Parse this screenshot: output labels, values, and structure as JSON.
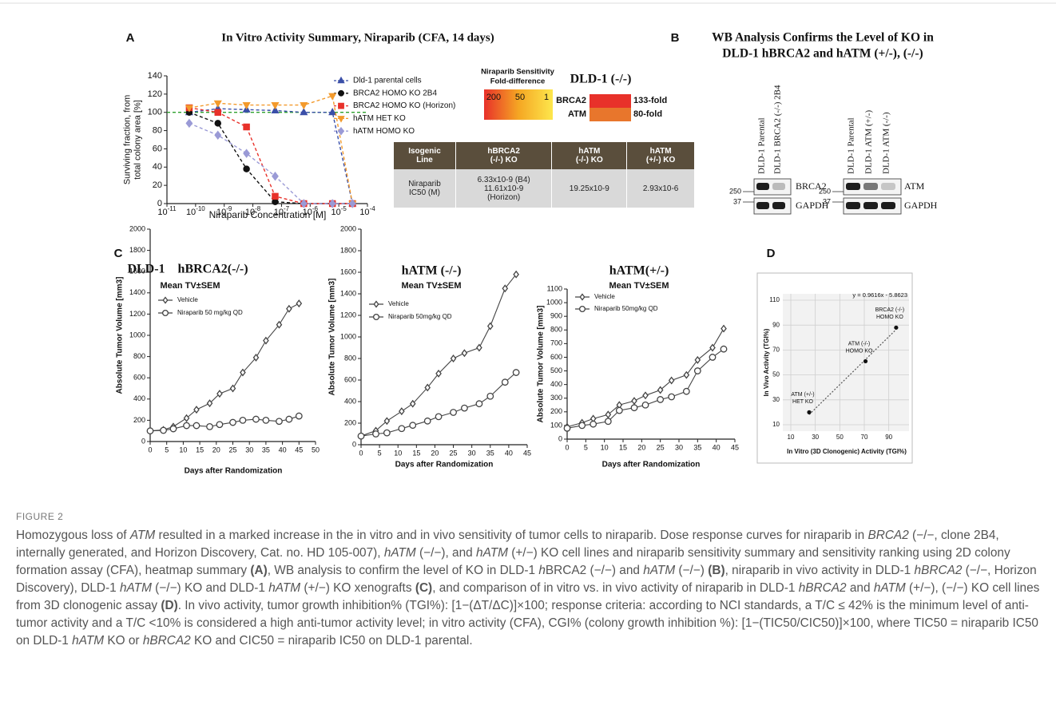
{
  "panel_labels": [
    "A",
    "B",
    "C",
    "D"
  ],
  "chart_data": [
    {
      "type": "line",
      "title": "In Vitro Activity Summary, Niraparib (CFA, 14 days)",
      "x_label": "Niraparib Concentration [M]",
      "y_label": [
        "Surviving fraction, from",
        "total colony area [%]"
      ],
      "log_x": true,
      "xlim": [
        1e-11,
        0.0001
      ],
      "xticks": [
        {
          "value": 1e-11,
          "label": "10-11"
        },
        {
          "value": 1e-10,
          "label": "10-10"
        },
        {
          "value": 1e-09,
          "label": "10-9"
        },
        {
          "value": 1e-08,
          "label": "10-8"
        },
        {
          "value": 1e-07,
          "label": "10-7"
        },
        {
          "value": 1e-06,
          "label": "10-6"
        },
        {
          "value": 1e-05,
          "label": "10-5"
        },
        {
          "value": 0.0001,
          "label": "10-4"
        }
      ],
      "ylim": [
        0,
        140
      ],
      "yticks": [
        0,
        20,
        40,
        60,
        80,
        100,
        120,
        140
      ],
      "grid": false,
      "reference_line": {
        "value": 100,
        "color": "#2ca02c"
      },
      "x": [
        6e-11,
        6e-10,
        6e-09,
        6e-08,
        6e-07,
        6e-06,
        3e-05
      ],
      "series": [
        {
          "name": "Dld-1 parental cells",
          "color": "#3a4fa8",
          "marker": "triangle",
          "dash": true,
          "values": [
            100,
            104,
            103,
            102,
            100,
            100,
            0
          ]
        },
        {
          "name": "BRCA2 HOMO KO 2B4",
          "color": "#111111",
          "marker": "circle",
          "dash": true,
          "values": [
            100,
            88,
            38,
            2,
            0,
            0,
            0
          ]
        },
        {
          "name": "BRCA2 HOMO KO (Horizon)",
          "color": "#e8312a",
          "marker": "square",
          "dash": true,
          "values": [
            105,
            100,
            84,
            8,
            0,
            0,
            0
          ]
        },
        {
          "name": "hATM HET KO",
          "color": "#f39a2c",
          "marker": "triangle-down",
          "dash": true,
          "values": [
            105,
            110,
            108,
            108,
            108,
            118,
            0
          ]
        },
        {
          "name": "hATM HOMO KO",
          "color": "#9a9ad6",
          "marker": "diamond",
          "dash": true,
          "values": [
            88,
            75,
            55,
            30,
            0,
            0,
            0
          ]
        }
      ]
    },
    {
      "type": "line",
      "title": "DLD-1    hBRCA2(-/-)",
      "subtitle": "Mean TV±SEM",
      "x_label": "Days after Randomization",
      "y_label": "Absolute Tumor Volume [mm3]",
      "xlim": [
        0,
        50
      ],
      "xticks": [
        0,
        5,
        10,
        15,
        20,
        25,
        30,
        35,
        40,
        45,
        50
      ],
      "ylim": [
        0,
        2000
      ],
      "yticks": [
        0,
        200,
        400,
        600,
        800,
        1000,
        1200,
        1400,
        1600,
        1800,
        2000
      ],
      "x": [
        0,
        4,
        7,
        11,
        14,
        18,
        21,
        25,
        28,
        32,
        35,
        39,
        42,
        45
      ],
      "series": [
        {
          "name": "Vehicle",
          "color": "#444444",
          "marker": "diamond",
          "values": [
            100,
            110,
            140,
            220,
            300,
            360,
            450,
            500,
            650,
            790,
            950,
            1100,
            1250,
            1300
          ]
        },
        {
          "name": "Niraparib 50 mg/kg QD",
          "color": "#444444",
          "marker": "open-circle",
          "values": [
            100,
            105,
            120,
            150,
            150,
            140,
            160,
            180,
            200,
            210,
            200,
            190,
            210,
            240
          ]
        }
      ]
    },
    {
      "type": "line",
      "title": "hATM (-/-)",
      "subtitle": "Mean TV±SEM",
      "x_label": "Days after Randomization",
      "y_label": "Absolute Tumor Volume [mm3]",
      "xlim": [
        0,
        45
      ],
      "xticks": [
        0,
        5,
        10,
        15,
        20,
        25,
        30,
        35,
        40,
        45
      ],
      "ylim": [
        0,
        2000
      ],
      "yticks": [
        0,
        200,
        400,
        600,
        800,
        1000,
        1200,
        1400,
        1600,
        1800,
        2000
      ],
      "x": [
        0,
        4,
        7,
        11,
        14,
        18,
        21,
        25,
        28,
        32,
        35,
        39,
        42
      ],
      "series": [
        {
          "name": "Vehicle",
          "color": "#444444",
          "marker": "diamond",
          "values": [
            80,
            130,
            220,
            310,
            380,
            530,
            660,
            800,
            850,
            900,
            1100,
            1450,
            1580
          ]
        },
        {
          "name": "Niraparib 50mg/kg QD",
          "color": "#444444",
          "marker": "open-circle",
          "values": [
            80,
            100,
            110,
            150,
            180,
            220,
            260,
            300,
            340,
            380,
            450,
            580,
            670
          ]
        }
      ]
    },
    {
      "type": "line",
      "title": "hATM(+/-)",
      "subtitle": "Mean TV±SEM",
      "x_label": "Days after Randomization",
      "y_label": "Absolute Tumor Volume [mm3]",
      "xlim": [
        0,
        45
      ],
      "xticks": [
        0,
        5,
        10,
        15,
        20,
        25,
        30,
        35,
        40,
        45
      ],
      "ylim": [
        0,
        1100
      ],
      "yticks": [
        0,
        100,
        200,
        300,
        400,
        500,
        600,
        700,
        800,
        900,
        1000,
        1100
      ],
      "x": [
        0,
        4,
        7,
        11,
        14,
        18,
        21,
        25,
        28,
        32,
        35,
        39,
        42
      ],
      "series": [
        {
          "name": "Vehicle",
          "color": "#444444",
          "marker": "diamond",
          "values": [
            90,
            120,
            150,
            180,
            250,
            280,
            320,
            360,
            430,
            470,
            580,
            670,
            810
          ]
        },
        {
          "name": "Niraparib 50mg/kg QD",
          "color": "#444444",
          "marker": "open-circle",
          "values": [
            80,
            100,
            110,
            130,
            210,
            230,
            250,
            290,
            310,
            350,
            500,
            600,
            660
          ]
        }
      ]
    },
    {
      "type": "scatter",
      "x_label": "In Vitro (3D Clonogenic) Activity (TGI%)",
      "y_label": "In Vivo Activity (TGI%)",
      "xlim": [
        10,
        100
      ],
      "xticks": [
        10,
        30,
        50,
        70,
        90
      ],
      "ylim": [
        10,
        110
      ],
      "yticks": [
        10,
        30,
        50,
        70,
        90,
        110
      ],
      "grid": true,
      "color": "#111111",
      "x": [
        25,
        71,
        96
      ],
      "values": [
        20,
        61,
        88
      ],
      "point_labels": [
        [
          "ATM (+/-)",
          "HET KO"
        ],
        [
          "ATM (-/-)",
          "HOMO KO"
        ],
        [
          "BRCA2 (-/-)",
          "HOMO KO"
        ]
      ],
      "trendline": {
        "slope": 0.9616,
        "intercept": -5.8623,
        "label": "y = 0.9616x - 5.8623"
      }
    }
  ],
  "heatmap": {
    "legend_title": [
      "Niraparib Sensitivity",
      "Fold-difference"
    ],
    "scale_ticks": [
      200,
      50,
      1
    ],
    "scale_colors": [
      "#e8312a",
      "#f5a623",
      "#fde74c"
    ],
    "title": "DLD-1 (-/-)",
    "rows": [
      {
        "name": "BRCA2",
        "value": 133,
        "value_label": "133-fold",
        "color": "#e8312a"
      },
      {
        "name": "ATM",
        "value": 80,
        "value_label": "80-fold",
        "color": "#e8762c"
      }
    ]
  },
  "table": {
    "header": [
      [
        "Isogenic",
        "Line"
      ],
      [
        "hBRCA2",
        "(-/-) KO"
      ],
      [
        "hATM",
        "(-/-) KO"
      ],
      [
        "hATM",
        "(+/-) KO"
      ]
    ],
    "rows": [
      [
        [
          "Niraparib",
          "IC50 (M)"
        ],
        [
          "6.33x10-9 (B4)",
          "11.61x10-9",
          "(Horizon)"
        ],
        [
          "19.25x10-9"
        ],
        [
          "2.93x10-6"
        ]
      ]
    ]
  },
  "blot": {
    "title": [
      "WB Analysis Confirms the Level of KO in",
      "DLD-1 hBRCA2 and hATM (+/-), (-/-)"
    ],
    "groups": [
      {
        "lanes": [
          "DLD-1 Parental",
          "DLD-1 BRCA2 (-/-) 2B4"
        ],
        "bands": [
          "BRCA2",
          "GAPDH"
        ],
        "markers": [
          250,
          37
        ]
      },
      {
        "lanes": [
          "DLD-1 Parental",
          "DLD-1 ATM (+/-)",
          "DLD-1 ATM (-/-)"
        ],
        "bands": [
          "ATM",
          "GAPDH"
        ],
        "markers": [
          250,
          37
        ]
      }
    ]
  },
  "caption": {
    "label": "FIGURE 2",
    "runs": [
      {
        "text": "Homozygous loss of "
      },
      {
        "text": "ATM",
        "style": "italic"
      },
      {
        "text": " resulted in a marked increase in the in vitro and in vivo sensitivity of tumor cells to niraparib. Dose response curves for niraparib in "
      },
      {
        "text": "BRCA2",
        "style": "italic"
      },
      {
        "text": " (−/−, clone 2B4, internally generated, and Horizon Discovery, Cat. no. HD 105-007), "
      },
      {
        "text": "hATM",
        "style": "italic"
      },
      {
        "text": " (−/−), and "
      },
      {
        "text": "hATM",
        "style": "italic"
      },
      {
        "text": " (+/−) KO cell lines and niraparib sensitivity summary and sensitivity ranking using 2D colony formation assay (CFA), heatmap summary "
      },
      {
        "text": "(A)",
        "style": "bold"
      },
      {
        "text": ", WB analysis to confirm the level of KO in DLD-1 "
      },
      {
        "text": "h",
        "style": "italic"
      },
      {
        "text": "BRCA2 (−/−) and "
      },
      {
        "text": "hATM",
        "style": "italic"
      },
      {
        "text": " (−/−) "
      },
      {
        "text": "(B)",
        "style": "bold"
      },
      {
        "text": ", niraparib in vivo activity in DLD-1 "
      },
      {
        "text": "hBRCA2",
        "style": "italic"
      },
      {
        "text": " (−/−, Horizon Discovery), DLD-1 "
      },
      {
        "text": "hATM",
        "style": "italic"
      },
      {
        "text": " (−/−) KO and DLD-1 "
      },
      {
        "text": "hATM",
        "style": "italic"
      },
      {
        "text": " (+/−) KO xenografts "
      },
      {
        "text": "(C)",
        "style": "bold"
      },
      {
        "text": ", and comparison of in vitro vs. in vivo activity of niraparib in DLD-1 "
      },
      {
        "text": "hBRCA2",
        "style": "italic"
      },
      {
        "text": " and "
      },
      {
        "text": "hATM",
        "style": "italic"
      },
      {
        "text": " (+/−), (−/−) KO cell lines from 3D clonogenic assay "
      },
      {
        "text": "(D)",
        "style": "bold"
      },
      {
        "text": ". In vivo activity, tumor growth inhibition% (TGI%): [1−(ΔT/ΔC)]×100; response criteria: according to NCI standards, a T/C ≤ 42% is the minimum level of anti-tumor activity and a T/C <10% is considered a high anti-tumor activity level; in vitro activity (CFA), CGI% (colony growth inhibition %): [1−(TIC50/CIC50)]×100, where TIC50 = niraparib IC50 on DLD-1 "
      },
      {
        "text": "hATM",
        "style": "italic"
      },
      {
        "text": " KO or "
      },
      {
        "text": "hBRCA2",
        "style": "italic"
      },
      {
        "text": " KO and CIC50 = niraparib IC50 on DLD-1 parental."
      }
    ]
  }
}
